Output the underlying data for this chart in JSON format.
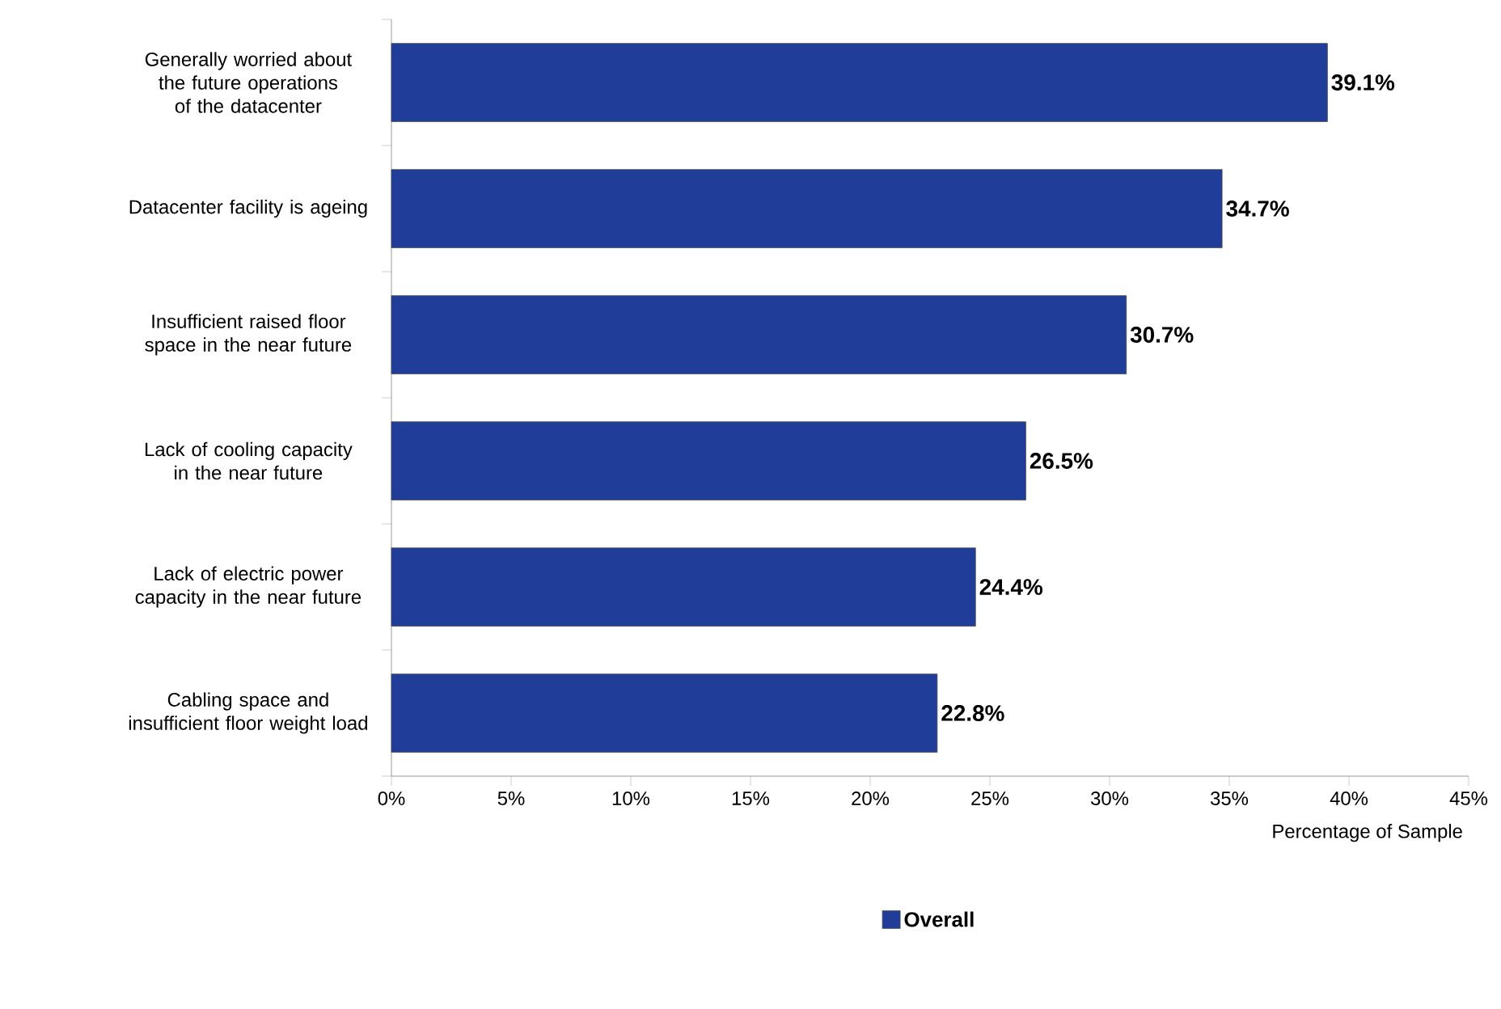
{
  "chart_data": {
    "type": "bar",
    "orientation": "horizontal",
    "xlabel": "Percentage of Sample",
    "categories": [
      "Generally worried about the future operations of the datacenter",
      "Datacenter facility is ageing",
      "Insufficient raised floor space in the near future",
      "Lack of cooling capacity in the near future",
      "Lack of electric power capacity in the near future",
      "Cabling space and insufficient floor weight load"
    ],
    "series": [
      {
        "name": "Overall",
        "color": "#1f3d99",
        "values": [
          39.1,
          34.7,
          30.7,
          26.5,
          24.4,
          22.8
        ],
        "value_labels": [
          "39.1%",
          "34.7%",
          "30.7%",
          "26.5%",
          "24.4%",
          "22.8%"
        ]
      }
    ],
    "xlim": [
      0,
      45
    ],
    "xticks": [
      {
        "value": 0,
        "label": "0%"
      },
      {
        "value": 5,
        "label": "5%"
      },
      {
        "value": 10,
        "label": "10%"
      },
      {
        "value": 15,
        "label": "15%"
      },
      {
        "value": 20,
        "label": "20%"
      },
      {
        "value": 25,
        "label": "25%"
      },
      {
        "value": 30,
        "label": "30%"
      },
      {
        "value": 35,
        "label": "35%"
      },
      {
        "value": 40,
        "label": "40%"
      },
      {
        "value": 45,
        "label": "45%"
      }
    ],
    "grid": false,
    "legend": "bottom"
  }
}
